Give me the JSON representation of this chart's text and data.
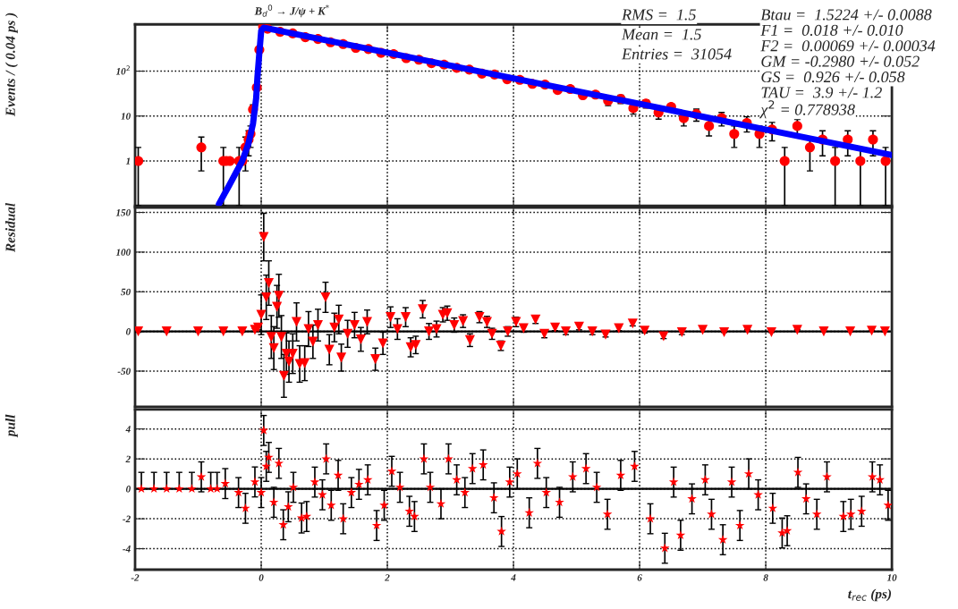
{
  "chart_data": [
    {
      "type": "scatter",
      "title": "B$_{d}$$^{0}$ → J/ψ + K$^{*}$",
      "ylabel": "Events / ( 0.04 ps )",
      "log": true,
      "grid": true,
      "tick_labels": "y",
      "xlim": [
        -2,
        10
      ],
      "xticks": [
        -2,
        0,
        2,
        4,
        6,
        8,
        10
      ],
      "ylim": [
        0.1,
        1100
      ],
      "yticks": [
        1,
        10,
        {
          "value": 100,
          "label": "10$^{2}$"
        }
      ],
      "annotations": [
        "RMS =  1.5",
        "Mean =  1.5",
        "Entries =  31054",
        "Btau =  1.5224 +/- 0.0088",
        "F1 =  0.018 +/- 0.010",
        "F2 =  0.00069 +/- 0.00034",
        "GM = -0.2980 +/- 0.052",
        "GS =  0.926 +/- 0.058",
        "TAU =  3.9 +/- 1.2",
        "χ$^{2}$ = 0.778938"
      ],
      "series": [
        {
          "color": "#ff0000",
          "marker": "circle",
          "x": [
            -1.95,
            -0.95,
            -0.6,
            -0.55,
            -0.5,
            -0.35,
            -0.3,
            -0.25,
            -0.2,
            -0.17,
            -0.13,
            -0.07,
            -0.03,
            0.03,
            0.1,
            0.3,
            0.5,
            0.7,
            0.9,
            1.1,
            1.3,
            1.5,
            1.7,
            1.9,
            2.1,
            2.3,
            2.5,
            2.7,
            2.9,
            3.1,
            3.3,
            3.5,
            3.7,
            3.9,
            4.1,
            4.3,
            4.5,
            4.7,
            4.9,
            5.1,
            5.3,
            5.5,
            5.7,
            5.9,
            6.1,
            6.3,
            6.5,
            6.7,
            6.9,
            7.1,
            7.3,
            7.5,
            7.7,
            7.9,
            8.1,
            8.3,
            8.5,
            8.7,
            8.9,
            9.1,
            9.3,
            9.5,
            9.7,
            9.9
          ],
          "values": [
            1,
            2,
            1,
            1,
            1,
            1,
            1,
            2,
            3,
            4,
            14,
            43,
            300,
            980,
            880,
            750,
            690,
            570,
            520,
            440,
            400,
            330,
            310,
            255,
            240,
            195,
            180,
            150,
            140,
            118,
            108,
            88,
            84,
            66,
            64,
            52,
            50,
            38,
            40,
            29,
            30,
            22,
            24,
            15,
            19,
            12,
            16,
            9,
            11,
            6,
            9,
            4,
            7,
            4,
            5,
            1,
            6,
            2,
            3,
            1,
            3,
            1,
            3,
            1
          ],
          "errors": [
            [
              0.1,
              2
            ],
            1.4,
            [
              0.1,
              2
            ],
            null,
            null,
            [
              0.1,
              2
            ],
            null,
            1.4,
            1.7,
            2,
            3.7,
            null,
            null,
            null,
            null,
            null,
            null,
            null,
            null,
            null,
            null,
            null,
            null,
            null,
            null,
            null,
            null,
            null,
            null,
            null,
            null,
            null,
            null,
            null,
            null,
            null,
            null,
            null,
            null,
            null,
            null,
            5,
            5,
            4,
            4,
            3.5,
            null,
            3,
            3.3,
            2.4,
            3,
            2,
            2.6,
            2,
            2.2,
            [
              0.1,
              2
            ],
            2.4,
            1.4,
            1.7,
            [
              0.1,
              2
            ],
            1.7,
            [
              0.1,
              2
            ],
            1.7,
            [
              0.1,
              2
            ]
          ]
        },
        {
          "type": "line",
          "color": "#0000ff",
          "x": [
            -0.67,
            -0.5,
            -0.4,
            -0.3,
            -0.2,
            -0.13,
            -0.08,
            -0.06,
            -0.03,
            0,
            0.04,
            1,
            2,
            3,
            4,
            5,
            6,
            7,
            8,
            9,
            10
          ],
          "values": [
            0.11,
            0.3,
            0.55,
            1.0,
            2.5,
            6.8,
            25,
            73,
            250,
            800,
            930,
            495,
            257,
            133,
            69,
            35.9,
            18.6,
            9.67,
            4.99,
            2.59,
            1.35
          ]
        }
      ]
    },
    {
      "type": "scatter",
      "ylabel": "Residual",
      "grid": true,
      "tick_labels": "y",
      "xlim": [
        -2,
        10
      ],
      "xticks": [
        -2,
        0,
        2,
        4,
        6,
        8,
        10
      ],
      "ylim": [
        -95,
        156
      ],
      "yticks": [
        -50,
        0,
        50,
        100,
        150
      ],
      "ref_lines": [
        {
          "axis": "y",
          "value": 0,
          "color": "#000000"
        }
      ],
      "series": [
        {
          "color": "#ff0000",
          "marker": "triangle",
          "x": [
            -1.95,
            -1.5,
            -1.0,
            -0.6,
            -0.3,
            -0.1,
            -0.05,
            0.0,
            0.04,
            0.08,
            0.12,
            0.16,
            0.2,
            0.25,
            0.28,
            0.32,
            0.36,
            0.4,
            0.44,
            0.5,
            0.56,
            0.61,
            0.69,
            0.75,
            0.82,
            0.9,
            1.02,
            1.08,
            1.16,
            1.23,
            1.27,
            1.37,
            1.48,
            1.58,
            1.68,
            1.81,
            1.93,
            2.05,
            2.16,
            2.29,
            2.37,
            2.45,
            2.56,
            2.66,
            2.78,
            2.88,
            2.95,
            3.06,
            3.2,
            3.31,
            3.46,
            3.58,
            3.66,
            3.8,
            3.91,
            4.04,
            4.16,
            4.35,
            4.49,
            4.66,
            4.83,
            5.04,
            5.25,
            5.46,
            5.67,
            5.89,
            6.08,
            6.38,
            6.67,
            7.0,
            7.34,
            7.71,
            8.09,
            8.5,
            8.92,
            9.34,
            9.68,
            9.89
          ],
          "values": [
            0,
            0,
            0,
            0,
            0,
            2,
            5,
            21,
            119,
            43,
            61,
            -7,
            -21,
            31,
            45,
            -7,
            -56,
            -28,
            -38,
            -28,
            12,
            -41,
            -40,
            3,
            -13,
            8,
            43,
            -23,
            5,
            15,
            -33,
            -3,
            8,
            -10,
            12,
            -35,
            -15,
            18,
            3,
            18,
            -20,
            -17,
            28,
            0,
            3,
            21,
            23,
            8,
            13,
            -11,
            18,
            12,
            -3,
            -18,
            0,
            12,
            4,
            15,
            -3,
            5,
            0,
            6,
            0,
            -4,
            4,
            10,
            1,
            -6,
            -1,
            2,
            -1,
            2,
            -1,
            2,
            0,
            0,
            1,
            0
          ],
          "errors": [
            1,
            1,
            1,
            1,
            1,
            2,
            3,
            25,
            30,
            28,
            28,
            27,
            27,
            27,
            27,
            27,
            27,
            26,
            26,
            25,
            24,
            23,
            22,
            22,
            21,
            20,
            19,
            19,
            18,
            18,
            17,
            17,
            16,
            15,
            15,
            14,
            14,
            13,
            13,
            12,
            12,
            11,
            11,
            10,
            10,
            9,
            9,
            9,
            8,
            8,
            7,
            7,
            7,
            6,
            6,
            6,
            5,
            5,
            5,
            4,
            4,
            4,
            4,
            3,
            3,
            3,
            3,
            3,
            3,
            2,
            null,
            null,
            null,
            null,
            null,
            null,
            null,
            null
          ]
        }
      ]
    },
    {
      "type": "scatter",
      "ylabel": "pull",
      "xlabel": "t$_{rec}$ (ps)",
      "grid": true,
      "xlim": [
        -2,
        10
      ],
      "xticks": [
        -2,
        0,
        2,
        4,
        6,
        8,
        10
      ],
      "ylim": [
        -5.4,
        5.3
      ],
      "yticks": [
        -4,
        -2,
        0,
        2,
        4
      ],
      "ref_lines": [
        {
          "axis": "y",
          "value": 0,
          "color": "#000000"
        }
      ],
      "series": [
        {
          "color": "#ff0000",
          "marker": "star",
          "x": [
            -1.9,
            -1.7,
            -1.5,
            -1.3,
            -1.1,
            -0.95,
            -0.8,
            -0.7,
            -0.57,
            -0.36,
            -0.25,
            -0.1,
            0.0,
            0.04,
            0.08,
            0.12,
            0.2,
            0.28,
            0.35,
            0.43,
            0.51,
            0.64,
            0.72,
            0.85,
            0.97,
            1.03,
            1.11,
            1.22,
            1.3,
            1.43,
            1.55,
            1.69,
            1.83,
            1.95,
            2.07,
            2.2,
            2.35,
            2.43,
            2.58,
            2.68,
            2.85,
            2.97,
            3.1,
            3.23,
            3.35,
            3.52,
            3.69,
            3.81,
            3.94,
            4.06,
            4.25,
            4.38,
            4.52,
            4.73,
            4.94,
            5.15,
            5.32,
            5.49,
            5.7,
            5.92,
            6.17,
            6.4,
            6.54,
            6.65,
            6.83,
            7.04,
            7.14,
            7.32,
            7.46,
            7.59,
            7.73,
            7.88,
            8.11,
            8.26,
            8.34,
            8.51,
            8.64,
            8.81,
            8.97,
            9.23,
            9.35,
            9.52,
            9.69,
            9.81,
            9.94
          ],
          "values": [
            0,
            0,
            0,
            0,
            0,
            0.8,
            0,
            0,
            0.35,
            -0.25,
            -1.3,
            0.46,
            -0.25,
            3.9,
            1.5,
            2.1,
            -0.9,
            1.7,
            -2.4,
            -1.2,
            0.1,
            -1.95,
            -1.85,
            0.45,
            -0.4,
            2.0,
            -1.1,
            0.9,
            -2.0,
            -0.25,
            0.3,
            0.6,
            -2.45,
            -1.1,
            1.17,
            0.1,
            -1.5,
            -1.85,
            2.0,
            0.1,
            -1.0,
            2.0,
            0.6,
            -0.25,
            1.35,
            1.6,
            -0.6,
            -2.85,
            0.45,
            1.0,
            -1.6,
            1.7,
            -0.25,
            -0.9,
            0.8,
            1.35,
            0.1,
            -1.7,
            0.9,
            1.5,
            -2.0,
            -3.97,
            0.45,
            -3.1,
            -0.67,
            0.6,
            -1.7,
            -3.4,
            0.45,
            -2.45,
            1.0,
            -0.4,
            -1.3,
            -2.95,
            -2.8,
            1.1,
            -0.67,
            -1.7,
            0.8,
            -1.85,
            -1.7,
            -1.5,
            0.8,
            0.6,
            -1.1
          ],
          "errors": [
            [
              0,
              1.1
            ],
            [
              0,
              1.1
            ],
            [
              0,
              1.1
            ],
            [
              0,
              1.1
            ],
            [
              0,
              1.1
            ],
            1,
            [
              0,
              1.1
            ],
            [
              0,
              1.1
            ],
            1,
            1,
            1,
            1,
            1,
            1,
            1,
            1,
            1,
            1,
            1,
            1,
            1,
            1,
            1,
            1,
            1,
            1,
            1,
            1,
            1,
            1,
            1,
            1,
            1,
            1,
            1,
            1,
            1,
            1,
            1,
            1,
            1,
            1,
            1,
            1,
            1,
            1,
            1,
            1,
            1,
            1,
            1,
            1,
            1,
            1,
            1,
            1,
            1,
            1,
            1,
            1,
            1,
            1,
            1,
            1,
            1,
            1,
            1,
            1,
            1,
            1,
            1,
            1,
            1,
            1,
            1,
            1,
            1,
            1,
            1,
            1,
            1,
            1,
            1,
            1,
            1
          ]
        }
      ]
    }
  ]
}
